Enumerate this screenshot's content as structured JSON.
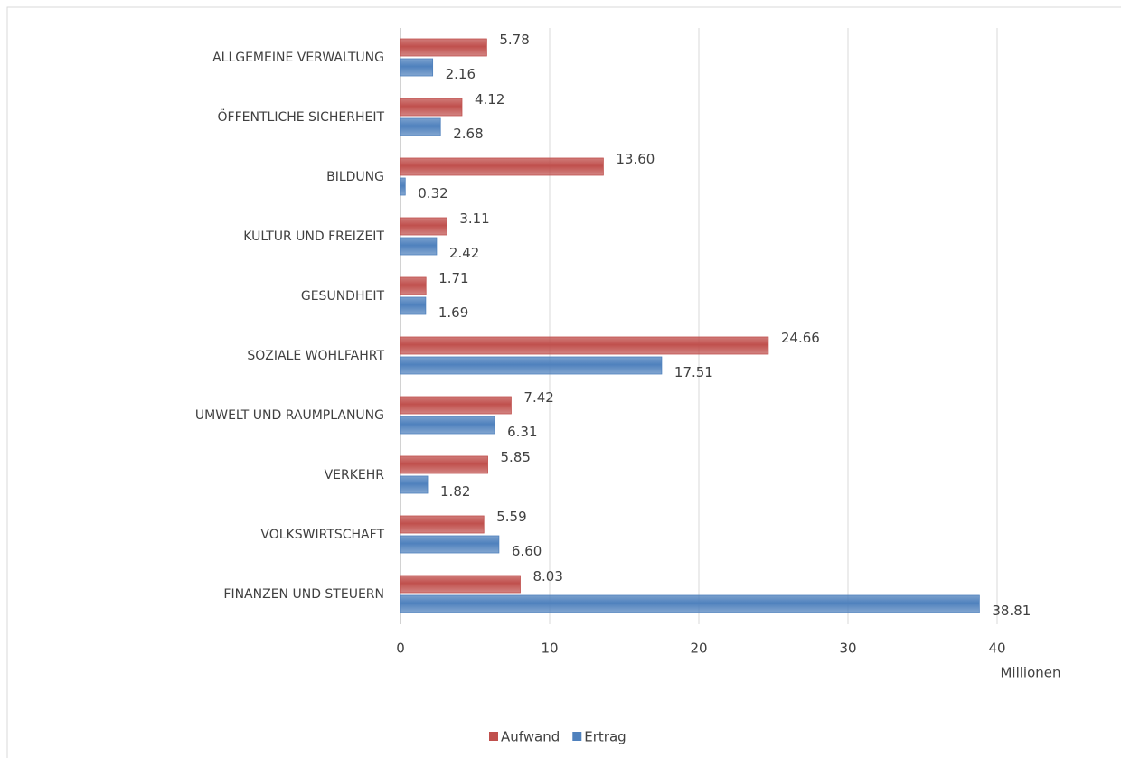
{
  "chart_data": {
    "type": "hbar",
    "categories": [
      "ALLGEMEINE VERWALTUNG",
      "ÖFFENTLICHE SICHERHEIT",
      "BILDUNG",
      "KULTUR UND FREIZEIT",
      "GESUNDHEIT",
      "SOZIALE WOHLFAHRT",
      "UMWELT UND RAUMPLANUNG",
      "VERKEHR",
      "VOLKSWIRTSCHAFT",
      "FINANZEN UND STEUERN"
    ],
    "series": [
      {
        "name": "Aufwand",
        "color": "#c0504d",
        "values": [
          5.78,
          4.12,
          13.6,
          3.11,
          1.71,
          24.66,
          7.42,
          5.85,
          5.59,
          8.03
        ],
        "value_labels": [
          "5.78",
          "4.12",
          "13.60",
          "3.11",
          "1.71",
          "24.66",
          "7.42",
          "5.85",
          "5.59",
          "8.03"
        ]
      },
      {
        "name": "Ertrag",
        "color": "#4f81bd",
        "values": [
          2.16,
          2.68,
          0.32,
          2.42,
          1.69,
          17.51,
          6.31,
          1.82,
          6.6,
          38.81
        ],
        "value_labels": [
          "2.16",
          "2.68",
          "0.32",
          "2.42",
          "1.69",
          "17.51",
          "6.31",
          "1.82",
          "6.60",
          "38.81"
        ]
      }
    ],
    "x_label": "Millionen",
    "xlim": [
      0,
      40
    ],
    "xticks": [
      0,
      10,
      20,
      30,
      40
    ],
    "grid": true,
    "legend": "bottom"
  }
}
